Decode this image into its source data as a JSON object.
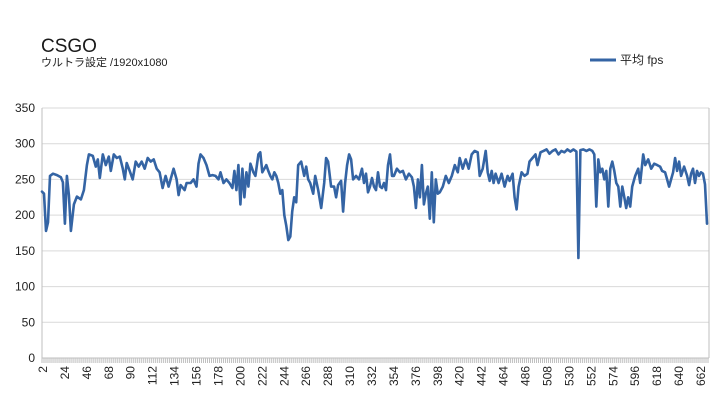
{
  "chart_data": {
    "type": "line",
    "title": "CSGO",
    "subtitle": "ウルトラ設定 /1920x1080",
    "xlabel": "",
    "ylabel": "",
    "ylim": [
      0,
      350
    ],
    "yticks": [
      "0",
      "50",
      "100",
      "150",
      "200",
      "250",
      "300",
      "350"
    ],
    "xlim": [
      1,
      670
    ],
    "xticks": [
      "2",
      "24",
      "46",
      "68",
      "90",
      "112",
      "134",
      "156",
      "178",
      "200",
      "222",
      "244",
      "266",
      "288",
      "310",
      "332",
      "354",
      "376",
      "398",
      "420",
      "442",
      "464",
      "486",
      "508",
      "530",
      "552",
      "574",
      "596",
      "618",
      "640",
      "662"
    ],
    "grid": "horizontal",
    "legend": "top-right",
    "series": [
      {
        "name": "平均 fps",
        "color": "#3464a4",
        "points": [
          [
            1,
            233
          ],
          [
            3,
            230
          ],
          [
            5,
            178
          ],
          [
            7,
            190
          ],
          [
            9,
            255
          ],
          [
            12,
            258
          ],
          [
            16,
            256
          ],
          [
            20,
            253
          ],
          [
            22,
            246
          ],
          [
            24,
            188
          ],
          [
            26,
            255
          ],
          [
            28,
            228
          ],
          [
            30,
            178
          ],
          [
            33,
            215
          ],
          [
            36,
            226
          ],
          [
            40,
            222
          ],
          [
            43,
            235
          ],
          [
            46,
            270
          ],
          [
            48,
            285
          ],
          [
            52,
            283
          ],
          [
            55,
            268
          ],
          [
            57,
            278
          ],
          [
            59,
            252
          ],
          [
            62,
            285
          ],
          [
            65,
            270
          ],
          [
            68,
            282
          ],
          [
            70,
            262
          ],
          [
            73,
            285
          ],
          [
            76,
            280
          ],
          [
            79,
            282
          ],
          [
            82,
            265
          ],
          [
            84,
            250
          ],
          [
            86,
            273
          ],
          [
            89,
            262
          ],
          [
            92,
            250
          ],
          [
            95,
            275
          ],
          [
            98,
            268
          ],
          [
            101,
            275
          ],
          [
            104,
            265
          ],
          [
            107,
            280
          ],
          [
            110,
            275
          ],
          [
            113,
            278
          ],
          [
            116,
            265
          ],
          [
            119,
            260
          ],
          [
            122,
            238
          ],
          [
            125,
            255
          ],
          [
            128,
            240
          ],
          [
            130,
            250
          ],
          [
            133,
            265
          ],
          [
            136,
            250
          ],
          [
            138,
            228
          ],
          [
            140,
            242
          ],
          [
            144,
            235
          ],
          [
            146,
            245
          ],
          [
            150,
            245
          ],
          [
            153,
            250
          ],
          [
            156,
            240
          ],
          [
            158,
            272
          ],
          [
            160,
            285
          ],
          [
            163,
            280
          ],
          [
            166,
            270
          ],
          [
            169,
            255
          ],
          [
            172,
            256
          ],
          [
            175,
            255
          ],
          [
            178,
            250
          ],
          [
            180,
            260
          ],
          [
            183,
            245
          ],
          [
            186,
            250
          ],
          [
            189,
            245
          ],
          [
            192,
            238
          ],
          [
            194,
            262
          ],
          [
            196,
            235
          ],
          [
            198,
            270
          ],
          [
            200,
            215
          ],
          [
            202,
            265
          ],
          [
            204,
            225
          ],
          [
            206,
            260
          ],
          [
            208,
            240
          ],
          [
            210,
            272
          ],
          [
            213,
            260
          ],
          [
            215,
            255
          ],
          [
            218,
            285
          ],
          [
            220,
            288
          ],
          [
            222,
            260
          ],
          [
            224,
            265
          ],
          [
            226,
            270
          ],
          [
            228,
            262
          ],
          [
            230,
            255
          ],
          [
            232,
            250
          ],
          [
            234,
            260
          ],
          [
            236,
            255
          ],
          [
            238,
            245
          ],
          [
            240,
            230
          ],
          [
            242,
            235
          ],
          [
            244,
            200
          ],
          [
            246,
            185
          ],
          [
            248,
            165
          ],
          [
            250,
            170
          ],
          [
            252,
            205
          ],
          [
            254,
            225
          ],
          [
            256,
            218
          ],
          [
            258,
            270
          ],
          [
            261,
            275
          ],
          [
            264,
            255
          ],
          [
            266,
            268
          ],
          [
            268,
            250
          ],
          [
            270,
            245
          ],
          [
            273,
            230
          ],
          [
            275,
            255
          ],
          [
            278,
            235
          ],
          [
            281,
            210
          ],
          [
            284,
            245
          ],
          [
            286,
            280
          ],
          [
            288,
            275
          ],
          [
            291,
            240
          ],
          [
            294,
            240
          ],
          [
            296,
            225
          ],
          [
            298,
            242
          ],
          [
            301,
            248
          ],
          [
            303,
            205
          ],
          [
            305,
            245
          ],
          [
            307,
            270
          ],
          [
            309,
            285
          ],
          [
            311,
            278
          ],
          [
            313,
            250
          ],
          [
            316,
            255
          ],
          [
            319,
            250
          ],
          [
            322,
            265
          ],
          [
            324,
            245
          ],
          [
            326,
            258
          ],
          [
            328,
            232
          ],
          [
            330,
            240
          ],
          [
            332,
            252
          ],
          [
            334,
            240
          ],
          [
            336,
            235
          ],
          [
            338,
            260
          ],
          [
            340,
            240
          ],
          [
            342,
            238
          ],
          [
            344,
            245
          ],
          [
            346,
            235
          ],
          [
            348,
            270
          ],
          [
            350,
            285
          ],
          [
            352,
            255
          ],
          [
            354,
            255
          ],
          [
            357,
            265
          ],
          [
            360,
            260
          ],
          [
            363,
            262
          ],
          [
            366,
            250
          ],
          [
            369,
            258
          ],
          [
            372,
            253
          ],
          [
            374,
            240
          ],
          [
            376,
            210
          ],
          [
            378,
            250
          ],
          [
            380,
            225
          ],
          [
            382,
            270
          ],
          [
            384,
            215
          ],
          [
            386,
            230
          ],
          [
            388,
            240
          ],
          [
            390,
            195
          ],
          [
            392,
            260
          ],
          [
            394,
            190
          ],
          [
            396,
            250
          ],
          [
            398,
            230
          ],
          [
            400,
            232
          ],
          [
            403,
            240
          ],
          [
            406,
            255
          ],
          [
            409,
            245
          ],
          [
            412,
            255
          ],
          [
            415,
            270
          ],
          [
            418,
            260
          ],
          [
            420,
            280
          ],
          [
            423,
            265
          ],
          [
            426,
            278
          ],
          [
            429,
            265
          ],
          [
            432,
            285
          ],
          [
            435,
            290
          ],
          [
            438,
            288
          ],
          [
            440,
            255
          ],
          [
            443,
            265
          ],
          [
            446,
            290
          ],
          [
            448,
            260
          ],
          [
            450,
            248
          ],
          [
            452,
            262
          ],
          [
            454,
            245
          ],
          [
            456,
            258
          ],
          [
            459,
            245
          ],
          [
            462,
            258
          ],
          [
            465,
            240
          ],
          [
            468,
            255
          ],
          [
            470,
            248
          ],
          [
            473,
            258
          ],
          [
            475,
            225
          ],
          [
            477,
            208
          ],
          [
            479,
            240
          ],
          [
            482,
            260
          ],
          [
            485,
            255
          ],
          [
            488,
            258
          ],
          [
            490,
            275
          ],
          [
            493,
            280
          ],
          [
            496,
            285
          ],
          [
            498,
            270
          ],
          [
            501,
            288
          ],
          [
            504,
            290
          ],
          [
            507,
            292
          ],
          [
            510,
            286
          ],
          [
            513,
            290
          ],
          [
            516,
            292
          ],
          [
            519,
            285
          ],
          [
            522,
            290
          ],
          [
            525,
            288
          ],
          [
            528,
            292
          ],
          [
            531,
            289
          ],
          [
            534,
            292
          ],
          [
            537,
            289
          ],
          [
            539,
            140
          ],
          [
            541,
            291
          ],
          [
            544,
            292
          ],
          [
            547,
            290
          ],
          [
            550,
            292
          ],
          [
            553,
            290
          ],
          [
            555,
            285
          ],
          [
            557,
            212
          ],
          [
            559,
            278
          ],
          [
            561,
            260
          ],
          [
            563,
            265
          ],
          [
            565,
            250
          ],
          [
            567,
            262
          ],
          [
            569,
            212
          ],
          [
            571,
            265
          ],
          [
            573,
            275
          ],
          [
            575,
            262
          ],
          [
            577,
            245
          ],
          [
            579,
            240
          ],
          [
            581,
            212
          ],
          [
            583,
            240
          ],
          [
            585,
            225
          ],
          [
            587,
            210
          ],
          [
            589,
            225
          ],
          [
            591,
            212
          ],
          [
            593,
            240
          ],
          [
            596,
            255
          ],
          [
            599,
            265
          ],
          [
            601,
            245
          ],
          [
            604,
            285
          ],
          [
            606,
            270
          ],
          [
            609,
            278
          ],
          [
            612,
            265
          ],
          [
            615,
            272
          ],
          [
            618,
            270
          ],
          [
            621,
            268
          ],
          [
            623,
            262
          ],
          [
            626,
            260
          ],
          [
            628,
            250
          ],
          [
            630,
            240
          ],
          [
            632,
            250
          ],
          [
            634,
            260
          ],
          [
            636,
            280
          ],
          [
            638,
            262
          ],
          [
            640,
            275
          ],
          [
            642,
            255
          ],
          [
            645,
            268
          ],
          [
            648,
            255
          ],
          [
            650,
            242
          ],
          [
            652,
            258
          ],
          [
            654,
            265
          ],
          [
            656,
            245
          ],
          [
            658,
            262
          ],
          [
            660,
            255
          ],
          [
            662,
            260
          ],
          [
            664,
            258
          ],
          [
            666,
            243
          ],
          [
            668,
            188
          ]
        ]
      }
    ]
  }
}
